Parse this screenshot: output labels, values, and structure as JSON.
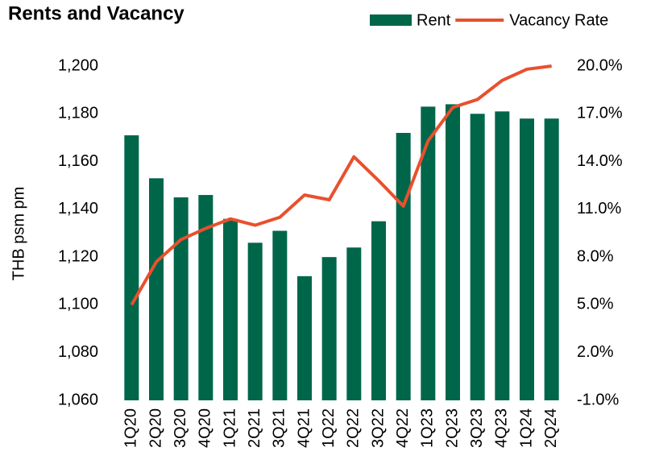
{
  "chart_data": {
    "type": "bar+line",
    "title": "Rents and Vacancy",
    "y_label": "THB psm pm",
    "categories": [
      "1Q20",
      "2Q20",
      "3Q20",
      "4Q20",
      "1Q21",
      "2Q21",
      "3Q21",
      "4Q21",
      "1Q22",
      "2Q22",
      "3Q22",
      "4Q22",
      "1Q23",
      "2Q23",
      "3Q23",
      "4Q23",
      "1Q24",
      "2Q24"
    ],
    "series": [
      {
        "name": "Rent",
        "type": "bar",
        "color": "#00664a",
        "values": [
          1171,
          1153,
          1145,
          1146,
          1136,
          1126,
          1131,
          1112,
          1120,
          1124,
          1135,
          1172,
          1183,
          1184,
          1180,
          1181,
          1178,
          1178
        ]
      },
      {
        "name": "Vacancy Rate",
        "type": "line",
        "axis": "y2",
        "color": "#e8502e",
        "values": [
          5.0,
          7.7,
          9.1,
          9.8,
          10.4,
          10.0,
          10.5,
          11.9,
          11.6,
          14.3,
          12.8,
          11.2,
          15.3,
          17.4,
          17.9,
          19.1,
          19.8,
          20.0
        ]
      }
    ],
    "ylim": [
      1060,
      1200
    ],
    "yticks": [
      {
        "value": 1060,
        "label": "1,060"
      },
      {
        "value": 1080,
        "label": "1,080"
      },
      {
        "value": 1100,
        "label": "1,100"
      },
      {
        "value": 1120,
        "label": "1,120"
      },
      {
        "value": 1140,
        "label": "1,140"
      },
      {
        "value": 1160,
        "label": "1,160"
      },
      {
        "value": 1180,
        "label": "1,180"
      },
      {
        "value": 1200,
        "label": "1,200"
      }
    ],
    "y2lim": [
      -1.0,
      20.0
    ],
    "y2ticks": [
      {
        "value": -1.0,
        "label": "-1.0%"
      },
      {
        "value": 2.0,
        "label": "2.0%"
      },
      {
        "value": 5.0,
        "label": "5.0%"
      },
      {
        "value": 8.0,
        "label": "8.0%"
      },
      {
        "value": 11.0,
        "label": "11.0%"
      },
      {
        "value": 14.0,
        "label": "14.0%"
      },
      {
        "value": 17.0,
        "label": "17.0%"
      },
      {
        "value": 20.0,
        "label": "20.0%"
      }
    ],
    "grid": false
  }
}
